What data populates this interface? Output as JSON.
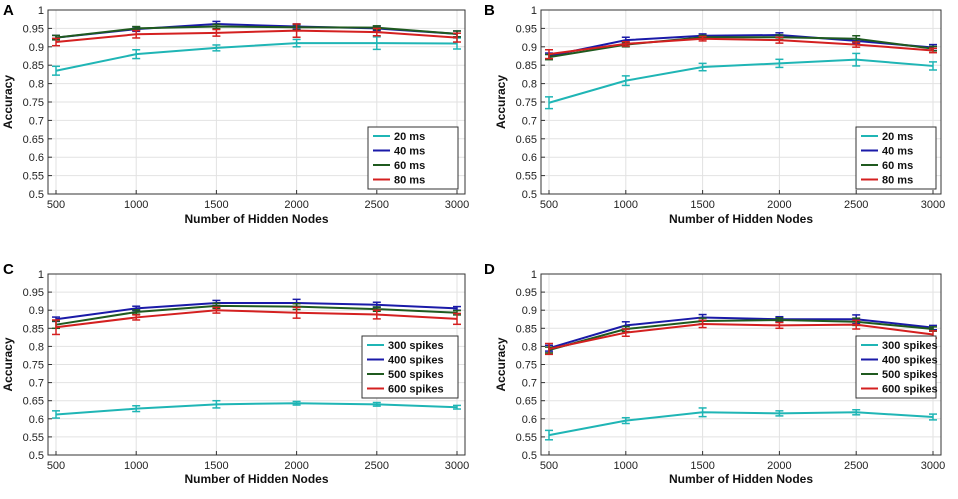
{
  "chart_data": [
    {
      "panel": "A",
      "type": "line",
      "xlabel": "Number of Hidden Nodes",
      "ylabel": "Accuracy",
      "x": [
        500,
        1000,
        1500,
        2000,
        2500,
        3000
      ],
      "xticks": [
        "500",
        "1000",
        "1500",
        "2000",
        "2500",
        "3000"
      ],
      "ylim": [
        0.5,
        1
      ],
      "yticks": [
        "0.5",
        "0.55",
        "0.6",
        "0.65",
        "0.7",
        "0.75",
        "0.8",
        "0.85",
        "0.9",
        "0.95",
        "1"
      ],
      "grid": true,
      "legend_position": "bottom-right",
      "series": [
        {
          "name": "20 ms",
          "color": "#1fb5b5",
          "values": [
            0.835,
            0.88,
            0.897,
            0.91,
            0.91,
            0.909
          ],
          "errors": [
            0.012,
            0.012,
            0.008,
            0.01,
            0.017,
            0.015
          ]
        },
        {
          "name": "40 ms",
          "color": "#1a1aa8",
          "values": [
            0.925,
            0.948,
            0.962,
            0.955,
            0.95,
            0.935
          ],
          "errors": [
            0.006,
            0.006,
            0.007,
            0.007,
            0.006,
            0.008
          ]
        },
        {
          "name": "60 ms",
          "color": "#1f5a1f",
          "values": [
            0.925,
            0.95,
            0.955,
            0.953,
            0.952,
            0.935
          ],
          "errors": [
            0.006,
            0.005,
            0.006,
            0.007,
            0.005,
            0.008
          ]
        },
        {
          "name": "80 ms",
          "color": "#d42020",
          "values": [
            0.913,
            0.934,
            0.938,
            0.944,
            0.94,
            0.925
          ],
          "errors": [
            0.01,
            0.01,
            0.009,
            0.018,
            0.01,
            0.012
          ]
        }
      ]
    },
    {
      "panel": "B",
      "type": "line",
      "xlabel": "Number of Hidden Nodes",
      "ylabel": "Accuracy",
      "x": [
        500,
        1000,
        1500,
        2000,
        2500,
        3000
      ],
      "xticks": [
        "500",
        "1000",
        "1500",
        "2000",
        "2500",
        "3000"
      ],
      "ylim": [
        0.5,
        1
      ],
      "yticks": [
        "0.5",
        "0.55",
        "0.6",
        "0.65",
        "0.7",
        "0.75",
        "0.8",
        "0.85",
        "0.9",
        "0.95",
        "1"
      ],
      "grid": true,
      "legend_position": "bottom-right",
      "series": [
        {
          "name": "20 ms",
          "color": "#1fb5b5",
          "values": [
            0.748,
            0.808,
            0.845,
            0.855,
            0.865,
            0.848
          ],
          "errors": [
            0.016,
            0.013,
            0.01,
            0.011,
            0.017,
            0.011
          ]
        },
        {
          "name": "40 ms",
          "color": "#1a1aa8",
          "values": [
            0.875,
            0.918,
            0.93,
            0.932,
            0.916,
            0.898
          ],
          "errors": [
            0.008,
            0.008,
            0.005,
            0.006,
            0.006,
            0.008
          ]
        },
        {
          "name": "60 ms",
          "color": "#1f5a1f",
          "values": [
            0.872,
            0.906,
            0.926,
            0.926,
            0.922,
            0.895
          ],
          "errors": [
            0.007,
            0.006,
            0.005,
            0.006,
            0.008,
            0.006
          ]
        },
        {
          "name": "80 ms",
          "color": "#d42020",
          "values": [
            0.88,
            0.908,
            0.922,
            0.918,
            0.906,
            0.89
          ],
          "errors": [
            0.012,
            0.006,
            0.006,
            0.008,
            0.007,
            0.006
          ]
        }
      ]
    },
    {
      "panel": "C",
      "type": "line",
      "xlabel": "Number of Hidden Nodes",
      "ylabel": "Accuracy",
      "x": [
        500,
        1000,
        1500,
        2000,
        2500,
        3000
      ],
      "xticks": [
        "500",
        "1000",
        "1500",
        "2000",
        "2500",
        "3000"
      ],
      "ylim": [
        0.5,
        1
      ],
      "yticks": [
        "0.5",
        "0.55",
        "0.6",
        "0.65",
        "0.7",
        "0.75",
        "0.8",
        "0.85",
        "0.9",
        "0.95",
        "1"
      ],
      "grid": true,
      "legend_position": "right",
      "series": [
        {
          "name": "300 spikes",
          "color": "#1fb5b5",
          "values": [
            0.612,
            0.628,
            0.64,
            0.643,
            0.64,
            0.632
          ],
          "errors": [
            0.01,
            0.008,
            0.01,
            0.005,
            0.005,
            0.005
          ]
        },
        {
          "name": "400 spikes",
          "color": "#1a1aa8",
          "values": [
            0.875,
            0.905,
            0.92,
            0.92,
            0.915,
            0.905
          ],
          "errors": [
            0.006,
            0.006,
            0.007,
            0.01,
            0.007,
            0.005
          ]
        },
        {
          "name": "500 spikes",
          "color": "#1f5a1f",
          "values": [
            0.86,
            0.895,
            0.912,
            0.91,
            0.903,
            0.893
          ],
          "errors": [
            0.01,
            0.006,
            0.007,
            0.008,
            0.006,
            0.006
          ]
        },
        {
          "name": "600 spikes",
          "color": "#d42020",
          "values": [
            0.853,
            0.88,
            0.9,
            0.893,
            0.888,
            0.876
          ],
          "errors": [
            0.02,
            0.007,
            0.008,
            0.015,
            0.012,
            0.015
          ]
        }
      ]
    },
    {
      "panel": "D",
      "type": "line",
      "xlabel": "Number of Hidden Nodes",
      "ylabel": "Accuracy",
      "x": [
        500,
        1000,
        1500,
        2000,
        2500,
        3000
      ],
      "xticks": [
        "500",
        "1000",
        "1500",
        "2000",
        "2500",
        "3000"
      ],
      "ylim": [
        0.5,
        1
      ],
      "yticks": [
        "0.5",
        "0.55",
        "0.6",
        "0.65",
        "0.7",
        "0.75",
        "0.8",
        "0.85",
        "0.9",
        "0.95",
        "1"
      ],
      "grid": true,
      "legend_position": "right",
      "series": [
        {
          "name": "300 spikes",
          "color": "#1fb5b5",
          "values": [
            0.555,
            0.595,
            0.618,
            0.615,
            0.618,
            0.605
          ],
          "errors": [
            0.013,
            0.008,
            0.012,
            0.007,
            0.007,
            0.008
          ]
        },
        {
          "name": "400 spikes",
          "color": "#1a1aa8",
          "values": [
            0.795,
            0.858,
            0.88,
            0.875,
            0.875,
            0.852
          ],
          "errors": [
            0.008,
            0.01,
            0.008,
            0.007,
            0.012,
            0.006
          ]
        },
        {
          "name": "500 spikes",
          "color": "#1f5a1f",
          "values": [
            0.79,
            0.848,
            0.87,
            0.873,
            0.868,
            0.848
          ],
          "errors": [
            0.008,
            0.007,
            0.008,
            0.006,
            0.01,
            0.006
          ]
        },
        {
          "name": "600 spikes",
          "color": "#d42020",
          "values": [
            0.793,
            0.838,
            0.862,
            0.858,
            0.86,
            0.833
          ],
          "errors": [
            0.015,
            0.01,
            0.01,
            0.008,
            0.012,
            0.01
          ]
        }
      ]
    }
  ]
}
